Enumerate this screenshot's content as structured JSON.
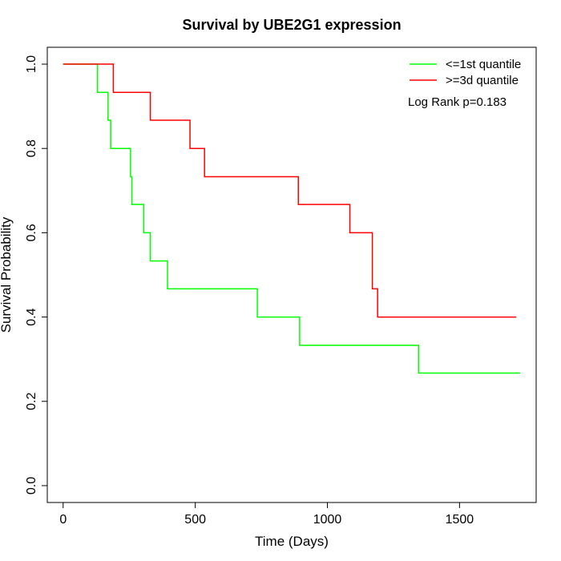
{
  "chart_data": {
    "type": "line",
    "title": "Survival by UBE2G1 expression",
    "xlabel": "Time (Days)",
    "ylabel": "Survival Probability",
    "xlim": [
      -60,
      1790
    ],
    "ylim": [
      -0.04,
      1.04
    ],
    "x_ticks": [
      0,
      500,
      1000,
      1500
    ],
    "x_tick_labels": [
      "0",
      "500",
      "1000",
      "1500"
    ],
    "y_ticks": [
      0.0,
      0.2,
      0.4,
      0.6,
      0.8,
      1.0
    ],
    "y_tick_labels": [
      "0.0",
      "0.2",
      "0.4",
      "0.6",
      "0.8",
      "1.0"
    ],
    "grid": false,
    "legend_position": "top-right",
    "annotation": "Log Rank p=0.183",
    "series": [
      {
        "name": "<=1st quantile",
        "color": "#00ff00",
        "x": [
          0,
          130,
          170,
          180,
          255,
          260,
          305,
          330,
          395,
          735,
          895,
          1345,
          1730
        ],
        "y": [
          1.0,
          0.933,
          0.867,
          0.8,
          0.733,
          0.667,
          0.6,
          0.533,
          0.467,
          0.4,
          0.333,
          0.267,
          0.267
        ]
      },
      {
        "name": ">=3d quantile",
        "color": "#ff0000",
        "x": [
          0,
          190,
          330,
          480,
          535,
          890,
          1085,
          1170,
          1190,
          1715
        ],
        "y": [
          1.0,
          0.933,
          0.867,
          0.8,
          0.733,
          0.667,
          0.6,
          0.467,
          0.4,
          0.4
        ]
      }
    ]
  }
}
